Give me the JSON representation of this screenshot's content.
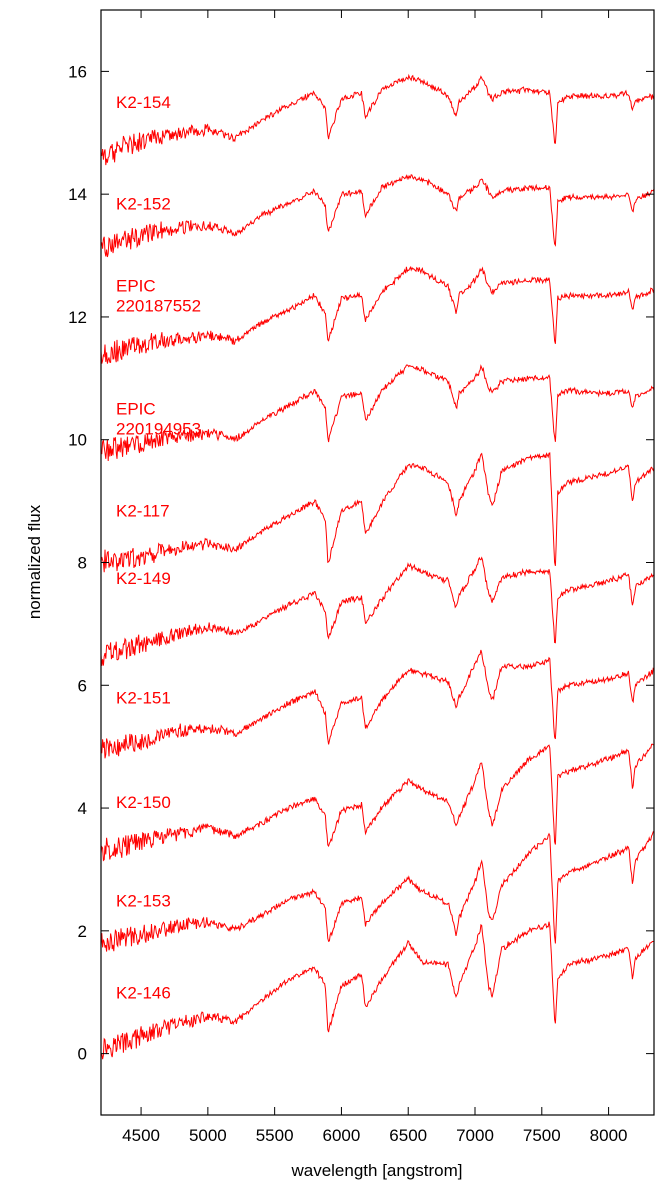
{
  "chart_data": {
    "type": "line",
    "title": "",
    "xlabel": "wavelength [angstrom]",
    "ylabel": "normalized flux",
    "xlim": [
      4200,
      8340
    ],
    "ylim": [
      -1,
      17
    ],
    "xticks": [
      4500,
      5000,
      5500,
      6000,
      6500,
      7000,
      7500,
      8000
    ],
    "yticks": [
      0,
      2,
      4,
      6,
      8,
      10,
      12,
      14,
      16
    ],
    "grid": false,
    "legend": "none",
    "line_color": "#ff0000",
    "x": [
      4200,
      4400,
      4600,
      4800,
      5000,
      5150,
      5200,
      5400,
      5600,
      5800,
      5880,
      5900,
      6000,
      6150,
      6180,
      6300,
      6500,
      6600,
      6800,
      6860,
      6880,
      7000,
      7050,
      7100,
      7130,
      7200,
      7400,
      7560,
      7600,
      7620,
      7700,
      8000,
      8150,
      8180,
      8200,
      8340
    ],
    "series": [
      {
        "name": "K2-146",
        "label_lines": [
          "K2-146"
        ],
        "label_y": 0.9,
        "values": [
          0.1,
          0.2,
          0.35,
          0.5,
          0.6,
          0.55,
          0.5,
          0.85,
          1.2,
          1.4,
          1.1,
          0.35,
          1.1,
          1.3,
          0.75,
          1.2,
          1.8,
          1.5,
          1.45,
          0.9,
          1.1,
          1.75,
          2.1,
          1.1,
          0.95,
          1.7,
          2.0,
          2.1,
          0.4,
          1.2,
          1.45,
          1.6,
          1.7,
          1.2,
          1.55,
          1.85
        ]
      },
      {
        "name": "K2-153",
        "label_lines": [
          "K2-153"
        ],
        "label_y": 2.4,
        "values": [
          1.8,
          1.9,
          2.0,
          2.1,
          2.15,
          2.05,
          2.0,
          2.25,
          2.5,
          2.65,
          2.35,
          1.8,
          2.45,
          2.55,
          2.1,
          2.45,
          2.85,
          2.65,
          2.45,
          1.95,
          2.2,
          2.8,
          3.15,
          2.3,
          2.15,
          2.75,
          3.25,
          3.55,
          1.7,
          2.8,
          2.95,
          3.2,
          3.35,
          2.75,
          3.15,
          3.6
        ]
      },
      {
        "name": "K2-150",
        "label_lines": [
          "K2-150"
        ],
        "label_y": 4.0,
        "values": [
          3.3,
          3.4,
          3.5,
          3.6,
          3.65,
          3.6,
          3.55,
          3.75,
          4.0,
          4.15,
          3.85,
          3.35,
          3.95,
          4.05,
          3.6,
          4.0,
          4.45,
          4.3,
          4.1,
          3.7,
          3.85,
          4.45,
          4.75,
          3.95,
          3.7,
          4.3,
          4.8,
          5.0,
          3.3,
          4.5,
          4.6,
          4.8,
          4.95,
          4.3,
          4.7,
          5.05
        ]
      },
      {
        "name": "K2-151",
        "label_lines": [
          "K2-151"
        ],
        "label_y": 5.7,
        "values": [
          4.95,
          5.05,
          5.15,
          5.25,
          5.3,
          5.25,
          5.2,
          5.45,
          5.7,
          5.9,
          5.55,
          5.05,
          5.7,
          5.8,
          5.3,
          5.75,
          6.25,
          6.2,
          6.05,
          5.65,
          5.8,
          6.35,
          6.55,
          5.95,
          5.75,
          6.3,
          6.3,
          6.4,
          5.0,
          5.9,
          6.0,
          6.1,
          6.2,
          5.7,
          6.0,
          6.25
        ]
      },
      {
        "name": "K2-149",
        "label_lines": [
          "K2-149"
        ],
        "label_y": 7.65,
        "values": [
          6.5,
          6.6,
          6.75,
          6.85,
          6.95,
          6.9,
          6.85,
          7.05,
          7.3,
          7.5,
          7.2,
          6.75,
          7.35,
          7.45,
          7.0,
          7.4,
          7.95,
          7.85,
          7.7,
          7.25,
          7.45,
          7.9,
          8.1,
          7.5,
          7.35,
          7.75,
          7.85,
          7.85,
          6.6,
          7.45,
          7.55,
          7.7,
          7.8,
          7.25,
          7.6,
          7.8
        ]
      },
      {
        "name": "K2-117",
        "label_lines": [
          "K2-117"
        ],
        "label_y": 8.75,
        "values": [
          8.0,
          8.05,
          8.15,
          8.25,
          8.3,
          8.25,
          8.2,
          8.5,
          8.75,
          9.0,
          8.7,
          7.95,
          8.85,
          9.0,
          8.45,
          8.95,
          9.6,
          9.55,
          9.3,
          8.75,
          9.0,
          9.5,
          9.8,
          9.1,
          8.9,
          9.5,
          9.7,
          9.75,
          7.8,
          9.15,
          9.3,
          9.45,
          9.55,
          8.95,
          9.3,
          9.55
        ]
      },
      {
        "name": "EPIC 220194953",
        "label_lines": [
          "EPIC",
          "220194953"
        ],
        "label_y": 10.25,
        "values": [
          9.8,
          9.9,
          10.0,
          10.05,
          10.1,
          10.05,
          10.0,
          10.3,
          10.55,
          10.8,
          10.5,
          9.95,
          10.7,
          10.75,
          10.3,
          10.8,
          11.2,
          11.15,
          10.95,
          10.5,
          10.75,
          11.0,
          11.2,
          10.85,
          10.75,
          10.95,
          11.0,
          11.0,
          9.9,
          10.75,
          10.8,
          10.75,
          10.8,
          10.5,
          10.7,
          10.85
        ]
      },
      {
        "name": "EPIC 220187552",
        "label_lines": [
          "EPIC",
          "220187552"
        ],
        "label_y": 12.25,
        "values": [
          11.4,
          11.5,
          11.6,
          11.65,
          11.7,
          11.65,
          11.6,
          11.9,
          12.1,
          12.35,
          12.05,
          11.6,
          12.3,
          12.35,
          11.95,
          12.4,
          12.8,
          12.75,
          12.5,
          12.05,
          12.35,
          12.6,
          12.8,
          12.5,
          12.4,
          12.55,
          12.6,
          12.6,
          11.5,
          12.3,
          12.35,
          12.35,
          12.4,
          12.1,
          12.3,
          12.45
        ]
      },
      {
        "name": "K2-152",
        "label_lines": [
          "K2-152"
        ],
        "label_y": 13.75,
        "values": [
          13.1,
          13.25,
          13.4,
          13.45,
          13.5,
          13.4,
          13.35,
          13.65,
          13.85,
          14.05,
          13.8,
          13.35,
          14.0,
          14.05,
          13.65,
          14.1,
          14.3,
          14.25,
          14.0,
          13.7,
          13.95,
          14.1,
          14.25,
          14.05,
          13.95,
          14.05,
          14.1,
          14.1,
          13.05,
          13.9,
          13.95,
          13.95,
          14.0,
          13.7,
          13.9,
          14.05
        ]
      },
      {
        "name": "K2-154",
        "label_lines": [
          "K2-154"
        ],
        "label_y": 15.4,
        "values": [
          14.6,
          14.8,
          14.9,
          15.0,
          15.05,
          14.95,
          14.9,
          15.2,
          15.45,
          15.65,
          15.4,
          14.9,
          15.55,
          15.65,
          15.25,
          15.7,
          15.9,
          15.85,
          15.6,
          15.25,
          15.5,
          15.75,
          15.9,
          15.65,
          15.55,
          15.65,
          15.7,
          15.65,
          14.75,
          15.5,
          15.6,
          15.6,
          15.65,
          15.35,
          15.5,
          15.6
        ]
      }
    ]
  }
}
